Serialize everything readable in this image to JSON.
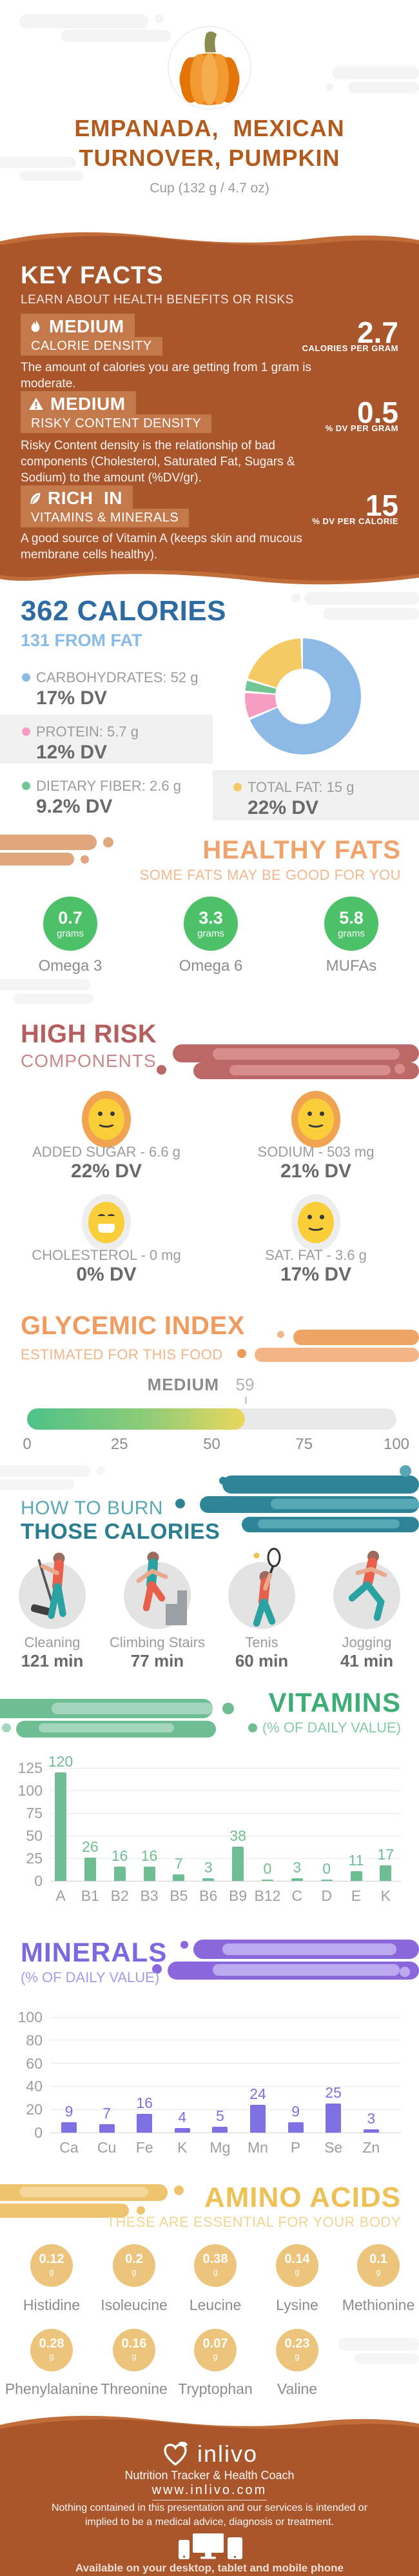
{
  "header": {
    "title_line1": "EMPANADA,  MEXICAN",
    "title_line2": "TURNOVER, PUMPKIN",
    "serving": "Cup (132 g / 4.7 oz)"
  },
  "key_facts": {
    "title": "KEY FACTS",
    "subtitle": "LEARN ABOUT HEALTH BENEFITS OR RISKS",
    "facts": [
      {
        "icon": "flame-icon",
        "level": "MEDIUM",
        "name": "CALORIE DENSITY",
        "value": "2.7",
        "unit": "CALORIES PER GRAM",
        "description": "The amount of calories you are getting from 1 gram is moderate."
      },
      {
        "icon": "warning-icon",
        "level": "MEDIUM",
        "name": "RISKY CONTENT DENSITY",
        "value": "0.5",
        "unit": "% DV PER GRAM",
        "description": "Risky Content density is the relationship of bad components (Cholesterol, Saturated Fat, Sugars & Sodium) to the amount (%DV/gr)."
      },
      {
        "icon": "leaf-icon",
        "level": "RICH  IN",
        "name": "VITAMINS & MINERALS",
        "value": "15",
        "unit": "% DV PER CALORIE",
        "description": "A good source of Vitamin A (keeps skin and mucous membrane cells healthy)."
      }
    ]
  },
  "calories": {
    "title": "362 CALORIES",
    "subtitle": "131 FROM FAT",
    "legend": [
      {
        "label": "CARBOHYDRATES: 52 g",
        "dv": "17% DV",
        "color": "#8cb9e6"
      },
      {
        "label": "PROTEIN: 5.7 g",
        "dv": "12% DV",
        "color": "#f79cc2"
      },
      {
        "label": "DIETARY FIBER: 2.6 g",
        "dv": "9.2% DV",
        "color": "#72c693"
      },
      {
        "label": "TOTAL FAT: 15 g",
        "dv": "22% DV",
        "color": "#f6ca63"
      }
    ]
  },
  "healthy_fats": {
    "title": "HEALTHY FATS",
    "subtitle": "SOME FATS MAY BE GOOD FOR YOU",
    "items": [
      {
        "value": "0.7",
        "unit": "grams",
        "label": "Omega 3"
      },
      {
        "value": "3.3",
        "unit": "grams",
        "label": "Omega 6"
      },
      {
        "value": "5.8",
        "unit": "grams",
        "label": "MUFAs"
      }
    ]
  },
  "high_risk": {
    "title": "HIGH RISK",
    "subtitle": "COMPONENTS",
    "items": [
      {
        "label": "ADDED SUGAR - 6.6 g",
        "dv": "22% DV",
        "face": "smile",
        "ring": "orange"
      },
      {
        "label": "SODIUM - 503 mg",
        "dv": "21% DV",
        "face": "smile",
        "ring": "orange"
      },
      {
        "label": "CHOLESTEROL - 0 mg",
        "dv": "0% DV",
        "face": "grin",
        "ring": "gray"
      },
      {
        "label": "SAT. FAT - 3.6 g",
        "dv": "17% DV",
        "face": "smile",
        "ring": "gray"
      }
    ]
  },
  "glycemic": {
    "title": "GLYCEMIC INDEX",
    "subtitle": "ESTIMATED FOR THIS FOOD",
    "level": "MEDIUM",
    "value": 59,
    "scale": [
      "0",
      "25",
      "50",
      "75",
      "100"
    ]
  },
  "burn": {
    "title_line1": "HOW TO BURN",
    "title_line2": "THOSE CALORIES",
    "activities": [
      {
        "icon": "cleaning-illustration",
        "label": "Cleaning",
        "minutes": "121 min"
      },
      {
        "icon": "climbing-stairs-illustration",
        "label": "Climbing Stairs",
        "minutes": "77 min"
      },
      {
        "icon": "tennis-illustration",
        "label": "Tenis",
        "minutes": "60 min"
      },
      {
        "icon": "jogging-illustration",
        "label": "Jogging",
        "minutes": "41 min"
      }
    ]
  },
  "vitamins": {
    "title": "VITAMINS",
    "subtitle": "(% OF DAILY VALUE)"
  },
  "minerals": {
    "title": "MINERALS",
    "subtitle": "(% OF DAILY VALUE)"
  },
  "amino_acids": {
    "title": "AMINO ACIDS",
    "subtitle": "THESE ARE ESSENTIAL FOR YOUR BODY",
    "unit": "g",
    "items": [
      {
        "value": "0.12",
        "label": "Histidine"
      },
      {
        "value": "0.2",
        "label": "Isoleucine"
      },
      {
        "value": "0.38",
        "label": "Leucine"
      },
      {
        "value": "0.14",
        "label": "Lysine"
      },
      {
        "value": "0.1",
        "label": "Methionine"
      },
      {
        "value": "0.28",
        "label": "Phenylalanine"
      },
      {
        "value": "0.16",
        "label": "Threonine"
      },
      {
        "value": "0.07",
        "label": "Tryptophan"
      },
      {
        "value": "0.23",
        "label": "Valine"
      }
    ]
  },
  "footer": {
    "brand": "inlivo",
    "tagline": "Nutrition Tracker & Health Coach",
    "url": "www.inlivo.com",
    "disclaimer": "Nothing contained in this presentation and our services is intended or implied to be a medical advice, diagnosis or treatment.",
    "availability": "Available on your desktop, tablet and mobile phone"
  },
  "chart_data": [
    {
      "type": "pie",
      "variant": "donut",
      "title": "Macronutrient composition (grams)",
      "labels": [
        "CARBOHYDRATES",
        "PROTEIN",
        "DIETARY FIBER",
        "TOTAL FAT"
      ],
      "values": [
        52,
        5.7,
        2.6,
        15
      ],
      "colors": [
        "#8cb9e6",
        "#f79cc2",
        "#72c693",
        "#f6ca63"
      ],
      "start_angle_deg": 0,
      "clockwise": true
    },
    {
      "type": "bar",
      "variant": "progress-gauge",
      "title": "GLYCEMIC INDEX",
      "categories": [
        "Glycemic Index"
      ],
      "values": [
        59
      ],
      "annotation": "MEDIUM",
      "xlim": [
        0,
        100
      ],
      "ticks": [
        0,
        25,
        50,
        75,
        100
      ],
      "fill_gradient": [
        "#4ec189",
        "#e9d75e"
      ],
      "track_color": "#e9e9e9"
    },
    {
      "type": "bar",
      "title": "VITAMINS (% OF DAILY VALUE)",
      "categories": [
        "A",
        "B1",
        "B2",
        "B3",
        "B5",
        "B6",
        "B9",
        "B12",
        "C",
        "D",
        "E",
        "K"
      ],
      "values": [
        120,
        26,
        16,
        16,
        7,
        3,
        38,
        0,
        3,
        0,
        11,
        17
      ],
      "ylim": [
        0,
        125
      ],
      "yticks": [
        0,
        25,
        50,
        75,
        100,
        125
      ],
      "bar_color": "#6fbe93",
      "grid": true,
      "value_labels": true
    },
    {
      "type": "bar",
      "title": "MINERALS (% OF DAILY VALUE)",
      "categories": [
        "Ca",
        "Cu",
        "Fe",
        "K",
        "Mg",
        "Mn",
        "P",
        "Se",
        "Zn"
      ],
      "values": [
        9,
        7,
        16,
        4,
        5,
        24,
        9,
        25,
        3
      ],
      "ylim": [
        0,
        100
      ],
      "yticks": [
        0,
        20,
        40,
        60,
        80,
        100
      ],
      "bar_color": "#7e6fe2",
      "grid": true,
      "value_labels": true
    }
  ]
}
